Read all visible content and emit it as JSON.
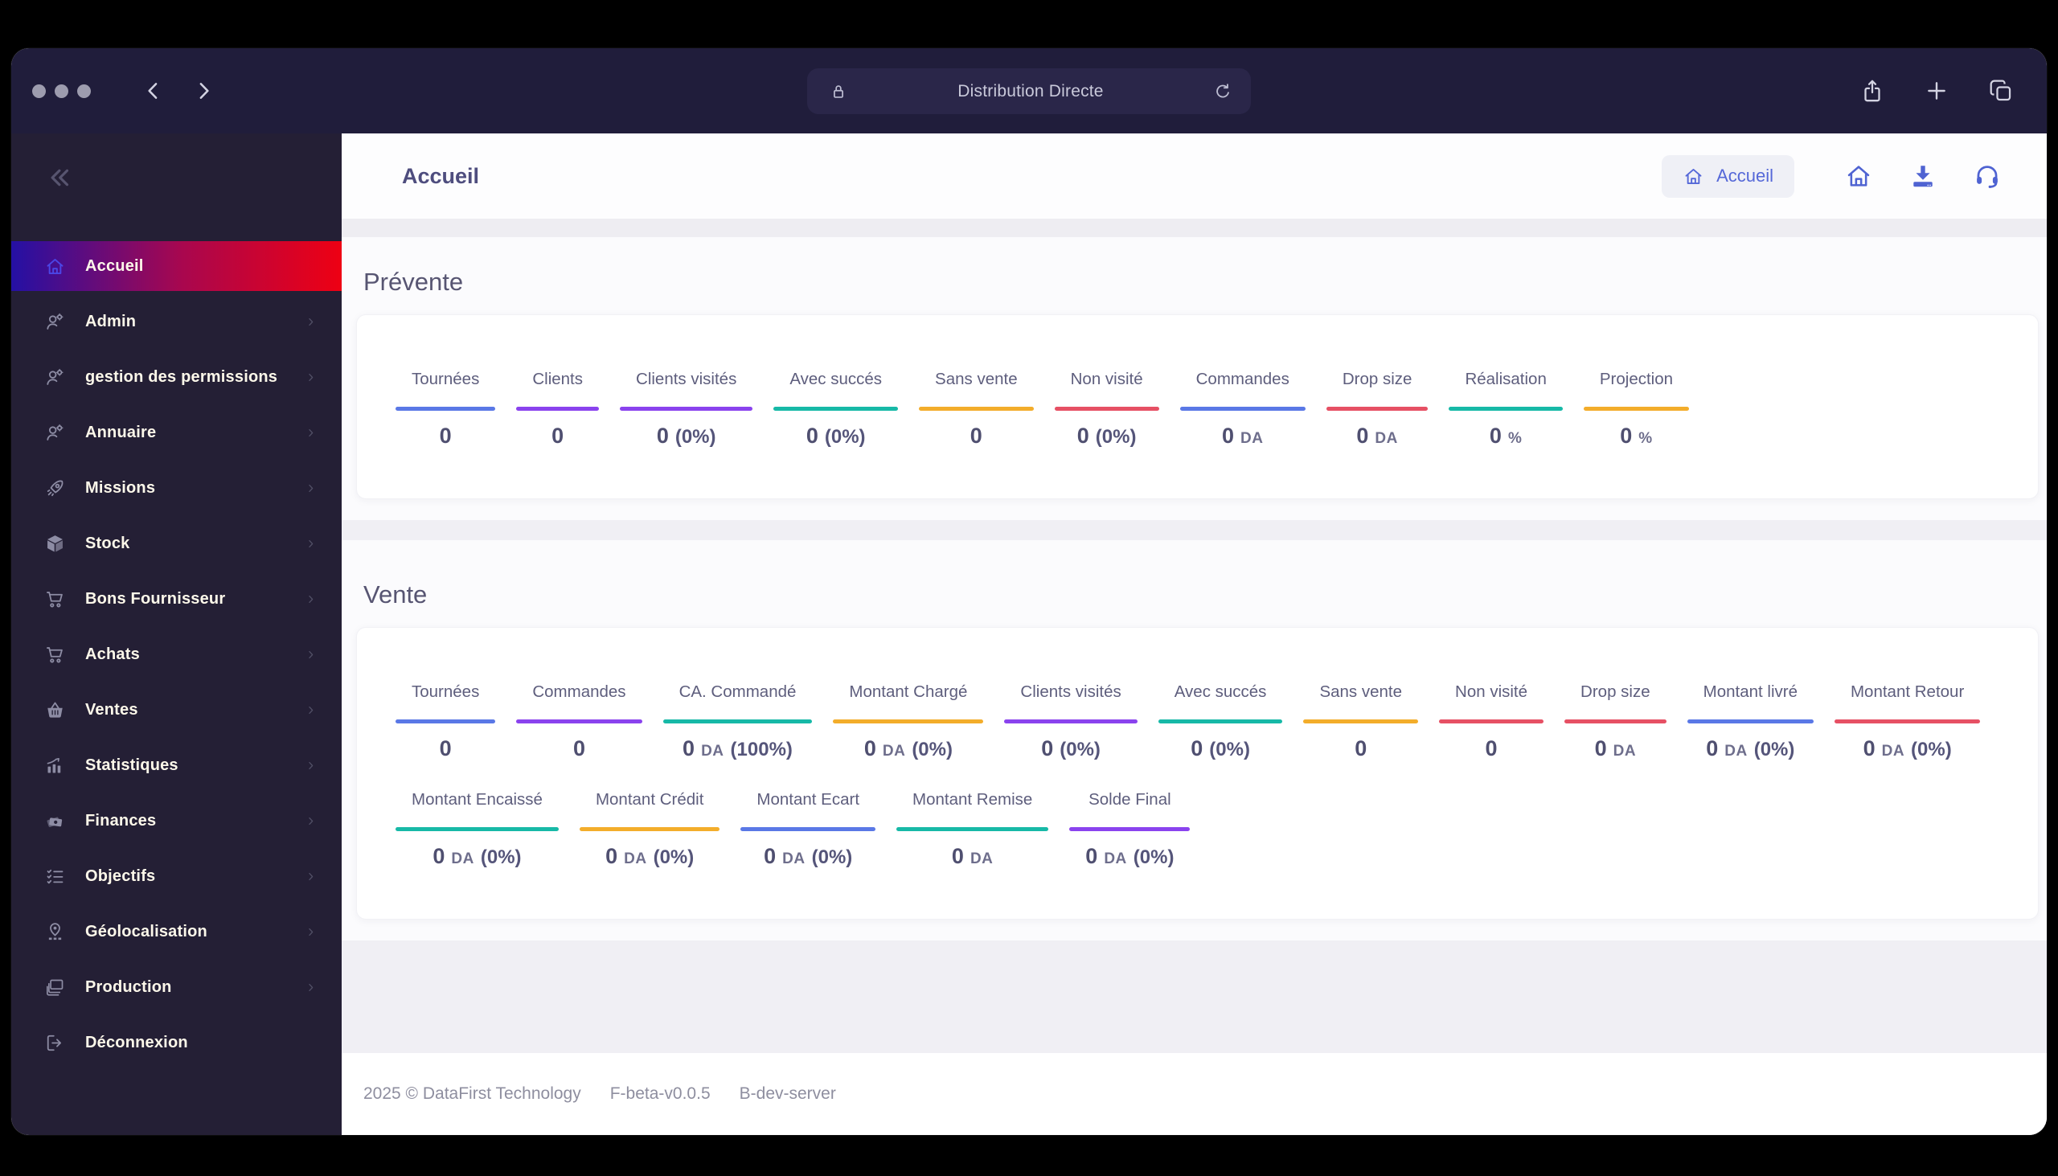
{
  "browser": {
    "address": "Distribution Directe"
  },
  "sidebar": {
    "items": [
      {
        "label": "Accueil",
        "icon": "home",
        "active": true,
        "has_chevron": false
      },
      {
        "label": "Admin",
        "icon": "user-gear",
        "active": false,
        "has_chevron": true
      },
      {
        "label": "gestion des permissions",
        "icon": "user-gear",
        "active": false,
        "has_chevron": true
      },
      {
        "label": "Annuaire",
        "icon": "user-gear",
        "active": false,
        "has_chevron": true
      },
      {
        "label": "Missions",
        "icon": "rocket",
        "active": false,
        "has_chevron": true
      },
      {
        "label": "Stock",
        "icon": "box",
        "active": false,
        "has_chevron": true
      },
      {
        "label": "Bons Fournisseur",
        "icon": "cart",
        "active": false,
        "has_chevron": true
      },
      {
        "label": "Achats",
        "icon": "cart",
        "active": false,
        "has_chevron": true
      },
      {
        "label": "Ventes",
        "icon": "basket",
        "active": false,
        "has_chevron": true
      },
      {
        "label": "Statistiques",
        "icon": "bar-chart",
        "active": false,
        "has_chevron": true
      },
      {
        "label": "Finances",
        "icon": "money",
        "active": false,
        "has_chevron": true
      },
      {
        "label": "Objectifs",
        "icon": "checklist",
        "active": false,
        "has_chevron": true
      },
      {
        "label": "Géolocalisation",
        "icon": "map-pin",
        "active": false,
        "has_chevron": true
      },
      {
        "label": "Production",
        "icon": "layers",
        "active": false,
        "has_chevron": true
      },
      {
        "label": "Déconnexion",
        "icon": "logout",
        "active": false,
        "has_chevron": false
      }
    ]
  },
  "header": {
    "title": "Accueil",
    "breadcrumb": {
      "label": "Accueil"
    }
  },
  "sections": [
    {
      "title": "Prévente",
      "rows": [
        [
          {
            "label": "Tournées",
            "color": "blue",
            "value": "0",
            "unit": "",
            "pct": ""
          },
          {
            "label": "Clients",
            "color": "purple",
            "value": "0",
            "unit": "",
            "pct": ""
          },
          {
            "label": "Clients visités",
            "color": "purple",
            "value": "0",
            "unit": "",
            "pct": "(0%)"
          },
          {
            "label": "Avec succés",
            "color": "teal",
            "value": "0",
            "unit": "",
            "pct": "(0%)"
          },
          {
            "label": "Sans vente",
            "color": "amber",
            "value": "0",
            "unit": "",
            "pct": ""
          },
          {
            "label": "Non visité",
            "color": "red",
            "value": "0",
            "unit": "",
            "pct": "(0%)"
          },
          {
            "label": "Commandes",
            "color": "blue",
            "value": "0",
            "unit": "DA",
            "pct": ""
          },
          {
            "label": "Drop size",
            "color": "red",
            "value": "0",
            "unit": "DA",
            "pct": ""
          },
          {
            "label": "Réalisation",
            "color": "teal",
            "value": "0",
            "unit": "%",
            "pct": ""
          },
          {
            "label": "Projection",
            "color": "amber",
            "value": "0",
            "unit": "%",
            "pct": ""
          }
        ]
      ]
    },
    {
      "title": "Vente",
      "rows": [
        [
          {
            "label": "Tournées",
            "color": "blue",
            "value": "0",
            "unit": "",
            "pct": ""
          },
          {
            "label": "Commandes",
            "color": "purple",
            "value": "0",
            "unit": "",
            "pct": ""
          },
          {
            "label": "CA. Commandé",
            "color": "teal",
            "value": "0",
            "unit": "DA",
            "pct": "(100%)"
          },
          {
            "label": "Montant Chargé",
            "color": "amber",
            "value": "0",
            "unit": "DA",
            "pct": "(0%)"
          },
          {
            "label": "Clients visités",
            "color": "purple",
            "value": "0",
            "unit": "",
            "pct": "(0%)"
          },
          {
            "label": "Avec succés",
            "color": "teal",
            "value": "0",
            "unit": "",
            "pct": "(0%)"
          },
          {
            "label": "Sans vente",
            "color": "amber",
            "value": "0",
            "unit": "",
            "pct": ""
          },
          {
            "label": "Non visité",
            "color": "red",
            "value": "0",
            "unit": "",
            "pct": ""
          },
          {
            "label": "Drop size",
            "color": "red",
            "value": "0",
            "unit": "DA",
            "pct": ""
          },
          {
            "label": "Montant livré",
            "color": "blue",
            "value": "0",
            "unit": "DA",
            "pct": "(0%)"
          },
          {
            "label": "Montant Retour",
            "color": "red",
            "value": "0",
            "unit": "DA",
            "pct": "(0%)"
          }
        ],
        [
          {
            "label": "Montant Encaissé",
            "color": "teal",
            "value": "0",
            "unit": "DA",
            "pct": "(0%)"
          },
          {
            "label": "Montant Crédit",
            "color": "amber",
            "value": "0",
            "unit": "DA",
            "pct": "(0%)"
          },
          {
            "label": "Montant Ecart",
            "color": "blue",
            "value": "0",
            "unit": "DA",
            "pct": "(0%)"
          },
          {
            "label": "Montant Remise",
            "color": "teal",
            "value": "0",
            "unit": "DA",
            "pct": ""
          },
          {
            "label": "Solde Final",
            "color": "purple",
            "value": "0",
            "unit": "DA",
            "pct": "(0%)"
          }
        ]
      ]
    }
  ],
  "footer": {
    "copyright": "2025 © DataFirst Technology",
    "version": "F-beta-v0.0.5",
    "server": "B-dev-server"
  },
  "colors": {
    "accent_blue": "#5266d6",
    "chrome_bg": "#201d3b",
    "sidebar_bg": "#241f35",
    "active_gradient_start": "#2410a4",
    "active_gradient_end": "#ee0013",
    "underline": {
      "blue": "#5a78e6",
      "purple": "#8a43ee",
      "teal": "#17b9a7",
      "amber": "#f3ad2b",
      "red": "#e65064"
    }
  }
}
